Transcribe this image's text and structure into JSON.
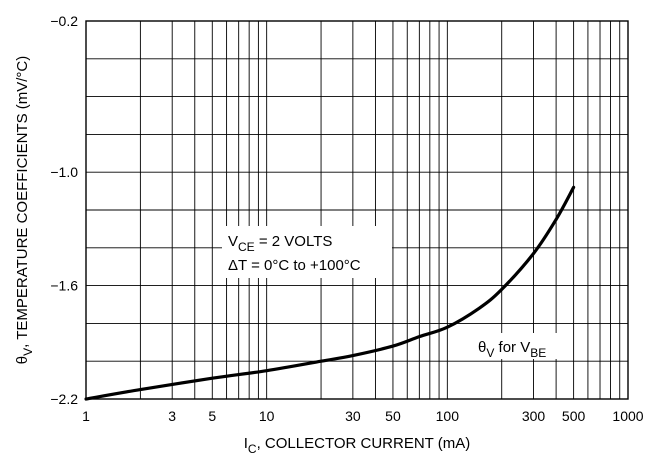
{
  "chart_data": {
    "type": "line",
    "x_scale": "log",
    "xlim": [
      1,
      1000
    ],
    "ylim": [
      -2.2,
      -0.2
    ],
    "grid": true,
    "xlabel": {
      "main": "I",
      "sub": "C",
      "rest": ", COLLECTOR CURRENT (mA)"
    },
    "ylabel": {
      "theta": "θ",
      "sub": "V",
      "rest": ", TEMPERATURE COEFFICIENTS (mV/°C)"
    },
    "x_ticks": [
      1,
      3,
      5,
      10,
      30,
      50,
      100,
      300,
      500,
      1000
    ],
    "x_tick_labels": [
      "1",
      "3",
      "5",
      "10",
      "30",
      "50",
      "100",
      "300",
      "500",
      "1000"
    ],
    "y_ticks": [
      -0.2,
      -1.0,
      -1.6,
      -2.2
    ],
    "y_tick_labels": [
      "−0.2",
      "−1.0",
      "−1.6",
      "−2.2"
    ],
    "y_grid": [
      -0.2,
      -0.4,
      -0.6,
      -0.8,
      -1.0,
      -1.2,
      -1.4,
      -1.6,
      -1.8,
      -2.0,
      -2.2
    ],
    "annotations": {
      "line1": {
        "main": "V",
        "sub": "CE",
        "rest": " = 2 VOLTS"
      },
      "line2": "ΔT = 0°C to +100°C",
      "curve_label": {
        "theta": "θ",
        "sub1": "V",
        "mid": " for V",
        "sub2": "BE"
      }
    },
    "series": [
      {
        "x": [
          1,
          2,
          5,
          10,
          20,
          30,
          50,
          70,
          100,
          150,
          200,
          300,
          400,
          500
        ],
        "y": [
          -2.2,
          -2.15,
          -2.09,
          -2.05,
          -2.0,
          -1.97,
          -1.92,
          -1.87,
          -1.82,
          -1.72,
          -1.62,
          -1.43,
          -1.25,
          -1.08
        ]
      }
    ]
  }
}
